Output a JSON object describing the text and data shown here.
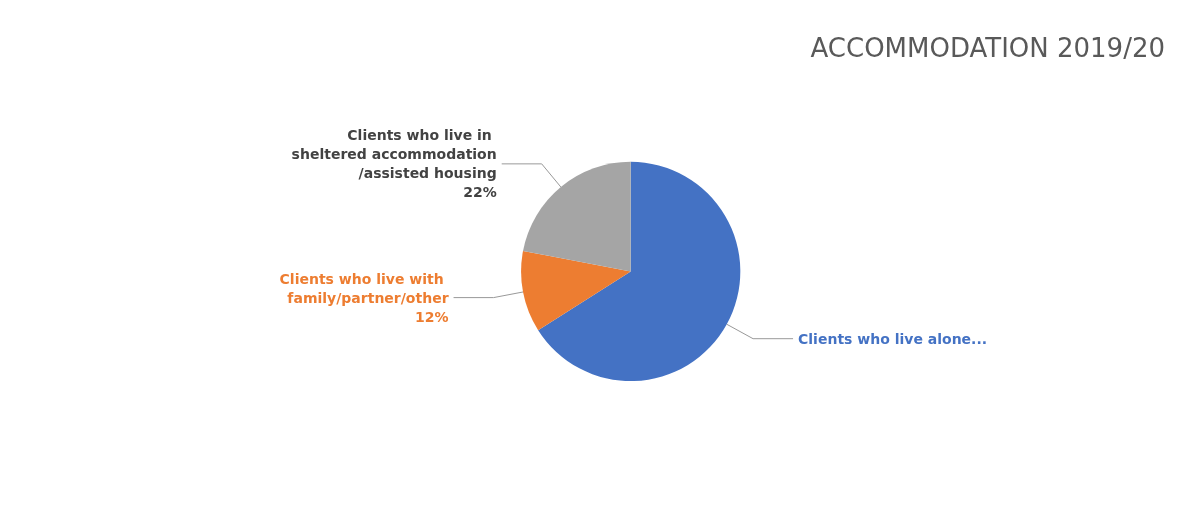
{
  "chart_data": {
    "type": "pie",
    "title": "ACCOMMODATION 2019/20",
    "categories": [
      "Clients who live alone...",
      "Clients who live with family/partner/other",
      "Clients who live in sheltered accommodation/assisted housing"
    ],
    "values": [
      66,
      12,
      22
    ],
    "colors": [
      "#4472c4",
      "#ed7d31",
      "#a5a5a5"
    ],
    "value_labels": [
      null,
      "12%",
      "22%"
    ],
    "legend": false
  }
}
